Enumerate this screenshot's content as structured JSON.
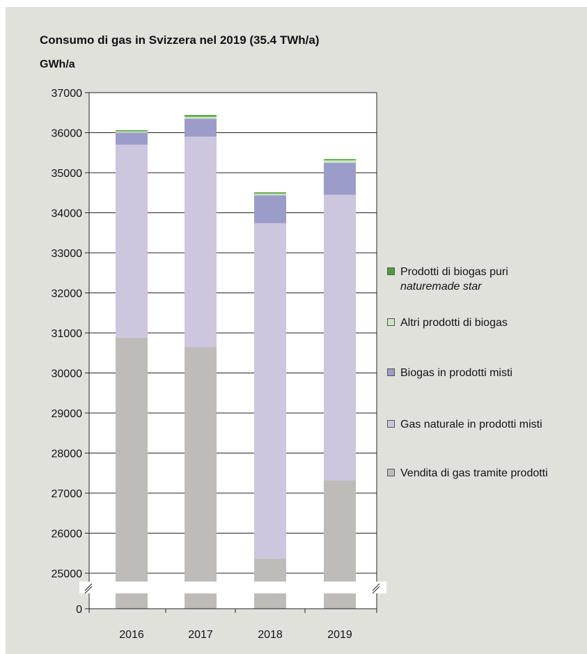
{
  "title": "Consumo di gas in Svizzera nel 2019 (35.4 TWh/a)",
  "unit_label": "GWh/a",
  "chart_data": {
    "type": "bar",
    "stacked": true,
    "axis_break": true,
    "categories": [
      "2016",
      "2017",
      "2018",
      "2019"
    ],
    "ylim": [
      25000,
      37000
    ],
    "yticks": [
      37000,
      36000,
      35000,
      34000,
      33000,
      32000,
      31000,
      30000,
      29000,
      28000,
      27000,
      26000,
      25000
    ],
    "y_zero_label": "0",
    "grid": true,
    "legend_position": "right",
    "series": [
      {
        "name": "Vendita di gas tramite prodotti",
        "color": "#bdbcb9",
        "values": [
          30880,
          30650,
          25370,
          27320
        ]
      },
      {
        "name": "Gas naturale in prodotti misti",
        "color": "#cdc6df",
        "values": [
          4820,
          5250,
          8370,
          7130
        ]
      },
      {
        "name": "Biogas in prodotti misti",
        "color": "#9c9cc8",
        "values": [
          300,
          450,
          700,
          800
        ]
      },
      {
        "name": "Altri prodotti di biogas",
        "color": "#cde6bf",
        "values": [
          40,
          50,
          40,
          60
        ]
      },
      {
        "name": "Prodotti di biogas puri",
        "name_sub": "naturemade star",
        "color": "#4c9e3c",
        "values": [
          20,
          40,
          30,
          30
        ]
      }
    ]
  },
  "legend": [
    {
      "label": "Prodotti di biogas puri",
      "sub": "naturemade star",
      "color": "#4c9e3c"
    },
    {
      "label": "Altri prodotti di biogas",
      "color": "#cde6bf"
    },
    {
      "label": "Biogas in prodotti misti",
      "color": "#9c9cc8"
    },
    {
      "label": "Gas naturale in prodotti misti",
      "color": "#cdc6df"
    },
    {
      "label": "Vendita di gas tramite prodotti",
      "color": "#bdbcb9"
    }
  ]
}
